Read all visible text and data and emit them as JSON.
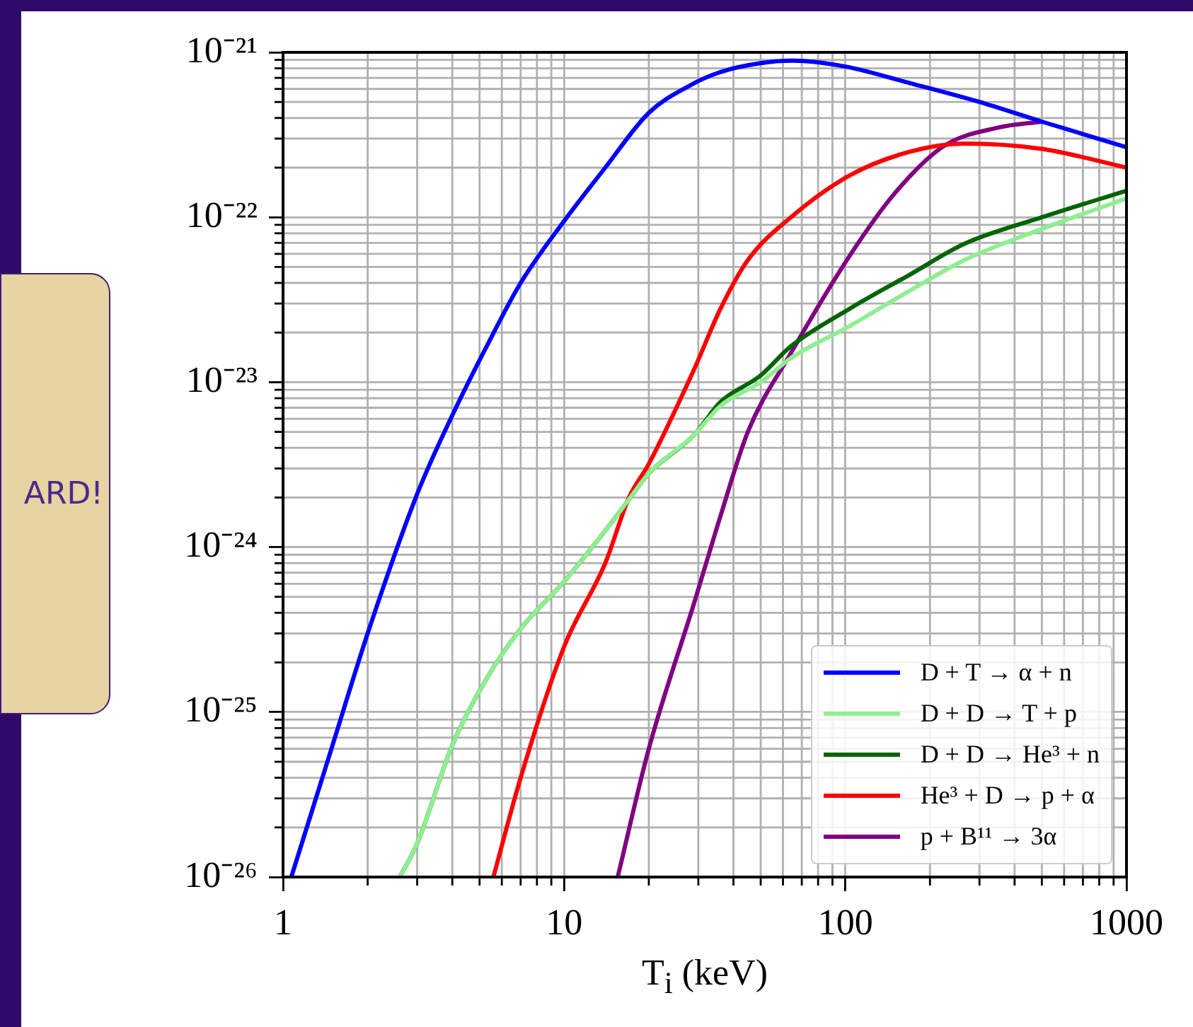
{
  "chart_data": {
    "type": "line",
    "xlabel": "T$_{i}$ (keV)",
    "log": "xy",
    "grid": true,
    "legend": "bottom right",
    "marker": "none",
    "line_style": "solid",
    "xlim": [
      1,
      1000
    ],
    "xticks": [
      1,
      10,
      100,
      1000
    ],
    "ylim": [
      1e-26,
      1e-21
    ],
    "yticks": [
      {
        "value": 1e-26,
        "label": "10⁻²⁶"
      },
      {
        "value": 1e-25,
        "label": "10⁻²⁵"
      },
      {
        "value": 1e-24,
        "label": "10⁻²⁴"
      },
      {
        "value": 1e-23,
        "label": "10⁻²³"
      },
      {
        "value": 1e-22,
        "label": "10⁻²²"
      },
      {
        "value": 1e-21,
        "label": "10⁻²¹"
      }
    ],
    "annotations": [
      "ARD!"
    ],
    "series": [
      {
        "name": "D + T → α + n",
        "color": "#0000ff",
        "x": [
          1.07,
          1.5,
          2,
          3,
          4,
          5.3,
          7,
          10,
          14,
          20,
          28,
          36,
          50,
          65,
          100,
          170,
          300,
          500,
          1000
        ],
        "values": [
          1e-26,
          6.3e-26,
          3e-25,
          2.1e-24,
          6.3e-24,
          1.65e-23,
          4e-23,
          9.5e-23,
          2e-22,
          4.3e-22,
          6.3e-22,
          7.6e-22,
          8.6e-22,
          8.9e-22,
          8.2e-22,
          6.5e-22,
          5e-22,
          3.8e-22,
          2.66e-22
        ]
      },
      {
        "name": "D + D → T + p",
        "color": "#90ee90",
        "x": [
          2.6,
          3,
          4,
          5.3,
          7,
          10,
          14,
          17,
          20,
          29,
          36,
          50,
          64,
          104,
          170,
          265,
          500,
          1000
        ],
        "values": [
          1e-26,
          1.6e-26,
          6.3e-26,
          1.6e-25,
          3.2e-25,
          6.2e-25,
          1.26e-24,
          1.95e-24,
          2.8e-24,
          4.8e-24,
          7.2e-24,
          1e-23,
          1.4e-23,
          2.2e-23,
          3.6e-23,
          5.5e-23,
          8.5e-23,
          1.3e-22
        ]
      },
      {
        "name": "D + D → He³ + n",
        "color": "#006400",
        "x": [
          2.6,
          3,
          4,
          5.3,
          7,
          10,
          14,
          17,
          20,
          29,
          36,
          50,
          64,
          104,
          170,
          265,
          500,
          1000
        ],
        "values": [
          1e-26,
          1.6e-26,
          6.3e-26,
          1.6e-25,
          3.2e-25,
          6.2e-25,
          1.26e-24,
          1.95e-24,
          2.8e-24,
          4.8e-24,
          7.6e-24,
          1.1e-23,
          1.65e-23,
          2.8e-23,
          4.5e-23,
          6.9e-23,
          1e-22,
          1.45e-22
        ]
      },
      {
        "name": "He³ + D → p + α",
        "color": "#ff0000",
        "x": [
          5.6,
          7,
          10,
          14,
          17,
          20,
          29,
          36,
          45,
          64,
          104,
          170,
          265,
          500,
          1000
        ],
        "values": [
          1e-26,
          4e-26,
          2.5e-25,
          8e-25,
          2e-24,
          3.2e-24,
          1.2e-23,
          2.8e-23,
          5.5e-23,
          1e-22,
          1.8e-22,
          2.5e-22,
          2.8e-22,
          2.6e-22,
          2e-22
        ]
      },
      {
        "name": "p + B¹¹ → 3α",
        "color": "#800080",
        "x": [
          15.5,
          20,
          29,
          36,
          45,
          64,
          104,
          150,
          224,
          350,
          500
        ],
        "values": [
          1e-26,
          6e-26,
          4.6e-25,
          1.55e-24,
          5e-24,
          1.5e-23,
          5.9e-23,
          1.4e-22,
          2.7e-22,
          3.5e-22,
          3.8e-22
        ]
      }
    ]
  }
}
